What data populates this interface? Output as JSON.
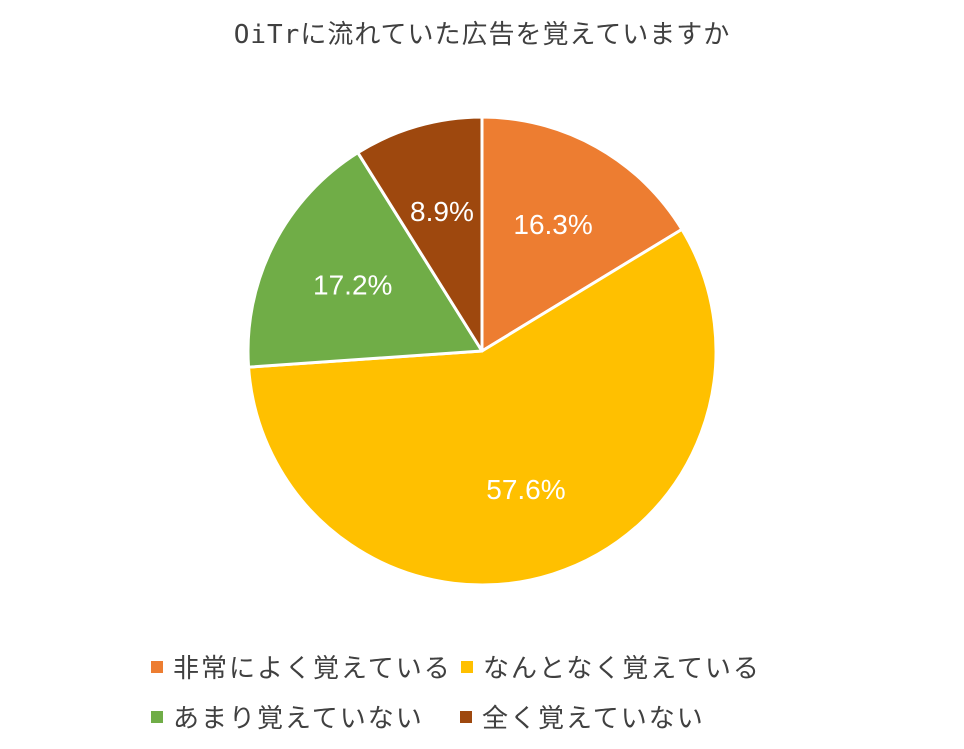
{
  "chart_data": {
    "type": "pie",
    "title": "OiTrに流れていた広告を覚えていますか",
    "slices": [
      {
        "label": "非常によく覚えている",
        "value": 16.3,
        "display": "16.3%",
        "color": "#ED7D31"
      },
      {
        "label": "なんとなく覚えている",
        "value": 57.6,
        "display": "57.6%",
        "color": "#FFC000"
      },
      {
        "label": "あまり覚えていない",
        "value": 17.2,
        "display": "17.2%",
        "color": "#70AD47"
      },
      {
        "label": "全く覚えていない",
        "value": 8.9,
        "display": "8.9%",
        "color": "#9E480E"
      }
    ],
    "start_angle_deg": 0,
    "direction": "clockwise",
    "data_label_color": "#ffffff",
    "slice_border_color": "#ffffff",
    "legend_position": "bottom"
  }
}
